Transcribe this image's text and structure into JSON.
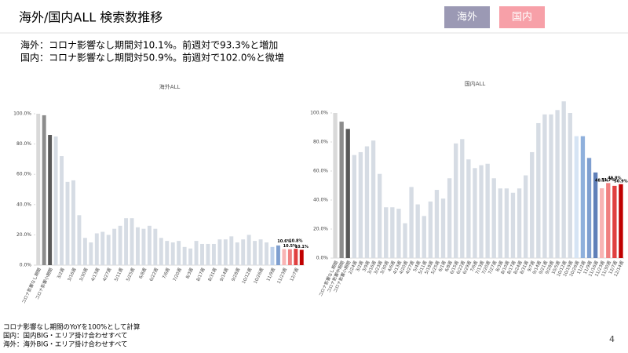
{
  "slide": {
    "title": "海外/国内ALL 検索数推移",
    "buttons": [
      "海外",
      "国内"
    ],
    "lines": [
      "海外：コロナ影響なし期間対10.1%。前週対で93.3%と増加",
      "国内：コロナ影響なし期間対50.9%。前週対で102.0%と微増"
    ],
    "notes": [
      "コロナ影響なし期間のYoYを100%として計算",
      "国内：国内BIG・エリア掛け合わせすべて",
      "海外：海外BIG・エリア掛け合わせすべて"
    ],
    "page": "4"
  },
  "chart_data": [
    {
      "type": "bar",
      "title": "海外ALL",
      "ylim": [
        0,
        100
      ],
      "yticks": [
        {
          "value": 0,
          "label": "0.0%"
        },
        {
          "value": 20,
          "label": "20.0%"
        },
        {
          "value": 40,
          "label": "40.0%"
        },
        {
          "value": 60,
          "label": "60.0%"
        },
        {
          "value": 80,
          "label": "80.0%"
        },
        {
          "value": 100,
          "label": "100.0%"
        }
      ],
      "categories": [
        "コロナ影響なし期間",
        null,
        "コロナ影響小期間",
        null,
        "3/2週",
        null,
        "3/16週",
        null,
        "3/30週",
        null,
        "4/13週",
        null,
        "4/27週",
        null,
        "5/11週",
        null,
        "5/25週",
        null,
        "6/8週",
        null,
        "6/22週",
        null,
        "7/6週",
        null,
        "7/20週",
        null,
        "8/3週",
        null,
        "8/17週",
        null,
        "8/31週",
        null,
        "9/14週",
        null,
        "9/28週",
        null,
        "10/12週",
        null,
        "10/26週",
        null,
        "11/9週",
        null,
        "11/23週",
        null,
        "12/7週",
        null
      ],
      "values": [
        100,
        99,
        86,
        85,
        72,
        55,
        56,
        33,
        18,
        15,
        21,
        22,
        20,
        24,
        26,
        31,
        31,
        25,
        24,
        26,
        24,
        18,
        16,
        15,
        16,
        12,
        11,
        16,
        14,
        14,
        14,
        17,
        17,
        19,
        15,
        17,
        20,
        16,
        17,
        15,
        12,
        13,
        10.6,
        10.5,
        10.8,
        10.1
      ],
      "value_labels": [
        null,
        null,
        null,
        null,
        null,
        null,
        null,
        null,
        null,
        null,
        null,
        null,
        null,
        null,
        null,
        null,
        null,
        null,
        null,
        null,
        null,
        null,
        null,
        null,
        null,
        null,
        null,
        null,
        null,
        null,
        null,
        null,
        null,
        null,
        null,
        null,
        null,
        null,
        null,
        null,
        null,
        null,
        "10.6%",
        "10.5%",
        "10.8%",
        "10.1%"
      ],
      "colors": [
        "#d9d9d9",
        "#8c8c8c",
        "#595959",
        "#d6dce4",
        "#d6dce4",
        "#d6dce4",
        "#d6dce4",
        "#d6dce4",
        "#d6dce4",
        "#d6dce4",
        "#d6dce4",
        "#d6dce4",
        "#d6dce4",
        "#d6dce4",
        "#d6dce4",
        "#d6dce4",
        "#d6dce4",
        "#d6dce4",
        "#d6dce4",
        "#d6dce4",
        "#d6dce4",
        "#d6dce4",
        "#d6dce4",
        "#d6dce4",
        "#d6dce4",
        "#d6dce4",
        "#d6dce4",
        "#d6dce4",
        "#d6dce4",
        "#d6dce4",
        "#d6dce4",
        "#d6dce4",
        "#d6dce4",
        "#d6dce4",
        "#d6dce4",
        "#d6dce4",
        "#d6dce4",
        "#d6dce4",
        "#d6dce4",
        "#d6dce4",
        "#bdd0ea",
        "#7f9fd0",
        "#f8b4b4",
        "#f08080",
        "#e04040",
        "#c00000"
      ]
    },
    {
      "type": "bar",
      "title": "国内ALL",
      "ylim": [
        0,
        110
      ],
      "yticks": [
        {
          "value": 0,
          "label": "0.0%"
        },
        {
          "value": 20,
          "label": "20.0%"
        },
        {
          "value": 40,
          "label": "40.0%"
        },
        {
          "value": 60,
          "label": "60.0%"
        },
        {
          "value": 80,
          "label": "80.0%"
        },
        {
          "value": 100,
          "label": "100.0%"
        }
      ],
      "categories": [
        "コロナ影響なし期間",
        "コロナ影響中期間",
        "コロナ影響小期間",
        "2/24週",
        "3/2週",
        "3/9週",
        "3/16週",
        "3/23週",
        "3/30週",
        "4/6週",
        "4/13週",
        "4/20週",
        "4/27週",
        "5/4週",
        "5/11週",
        "5/18週",
        "5/25週",
        "6/1週",
        "6/8週",
        "6/15週",
        "6/22週",
        "6/29週",
        "7/6週",
        "7/13週",
        "7/20週",
        "7/27週",
        "8/3週",
        "8/10週",
        "8/17週",
        "8/24週",
        "8/31週",
        "9/7週",
        "9/14週",
        "9/21週",
        "9/28週",
        "10/5週",
        "10/12週",
        "10/19週",
        "10/26週",
        "11/2週",
        "11/9週",
        "11/16週",
        "11/23週",
        "11/30週",
        "12/7週",
        "12/14週"
      ],
      "values": [
        100,
        94,
        89,
        71,
        73,
        77,
        81,
        58,
        35,
        35,
        34,
        24,
        49,
        37,
        29,
        39,
        47,
        41,
        55,
        79,
        82,
        68,
        62,
        64,
        65,
        55,
        48,
        48,
        45,
        48,
        57,
        73,
        93,
        99,
        99,
        102,
        108,
        100,
        84,
        84,
        69,
        59,
        48.1,
        51.7,
        49.8,
        50.9
      ],
      "value_labels": [
        null,
        null,
        null,
        null,
        null,
        null,
        null,
        null,
        null,
        null,
        null,
        null,
        null,
        null,
        null,
        null,
        null,
        null,
        null,
        null,
        null,
        null,
        null,
        null,
        null,
        null,
        null,
        null,
        null,
        null,
        null,
        null,
        null,
        null,
        null,
        null,
        null,
        null,
        null,
        null,
        null,
        null,
        "48.1%",
        "51.7%",
        "49.8%",
        "50.9%"
      ],
      "colors": [
        "#d9d9d9",
        "#8c8c8c",
        "#595959",
        "#d6dce4",
        "#d6dce4",
        "#d6dce4",
        "#d6dce4",
        "#d6dce4",
        "#d6dce4",
        "#d6dce4",
        "#d6dce4",
        "#d6dce4",
        "#d6dce4",
        "#d6dce4",
        "#d6dce4",
        "#d6dce4",
        "#d6dce4",
        "#d6dce4",
        "#d6dce4",
        "#d6dce4",
        "#d6dce4",
        "#d6dce4",
        "#d6dce4",
        "#d6dce4",
        "#d6dce4",
        "#d6dce4",
        "#d6dce4",
        "#d6dce4",
        "#d6dce4",
        "#d6dce4",
        "#d6dce4",
        "#d6dce4",
        "#d6dce4",
        "#d6dce4",
        "#d6dce4",
        "#d6dce4",
        "#d6dce4",
        "#d6dce4",
        "#d6e4f4",
        "#8fb0dc",
        "#7f9fd0",
        "#5f7fb8",
        "#f8b4b4",
        "#f08080",
        "#e04040",
        "#c00000"
      ]
    }
  ]
}
